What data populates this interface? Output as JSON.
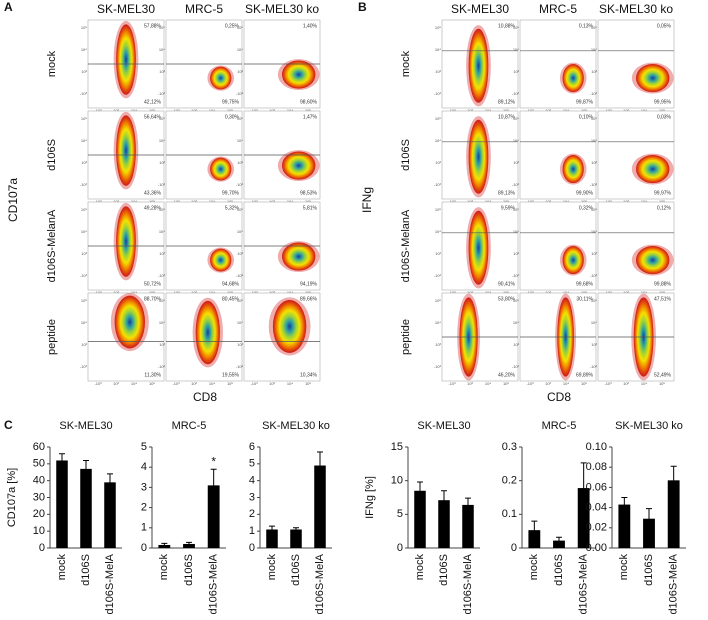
{
  "panels": [
    {
      "label": "A",
      "y_label": "CD107a",
      "x_label": "CD8",
      "columns": [
        "SK-MEL30",
        "MRC-5",
        "SK-MEL30 ko"
      ],
      "rows": [
        "mock",
        "d106S",
        "d106S-MelanA",
        "peptide"
      ],
      "cells": [
        [
          {
            "top": "57,88%",
            "bottom": "42,12%"
          },
          {
            "top": "0,25%",
            "bottom": "99,75%"
          },
          {
            "top": "1,40%",
            "bottom": "98,60%"
          }
        ],
        [
          {
            "top": "56,64%",
            "bottom": "43,36%"
          },
          {
            "top": "0,30%",
            "bottom": "99,70%"
          },
          {
            "top": "1,47%",
            "bottom": "98,53%"
          }
        ],
        [
          {
            "top": "49,28%",
            "bottom": "50,72%"
          },
          {
            "top": "5,32%",
            "bottom": "94,68%"
          },
          {
            "top": "5,81%",
            "bottom": "94,19%"
          }
        ],
        [
          {
            "top": "88,70%",
            "bottom": "11,30%"
          },
          {
            "top": "80,45%",
            "bottom": "19,55%"
          },
          {
            "top": "89,66%",
            "bottom": "10,34%"
          }
        ]
      ]
    },
    {
      "label": "B",
      "y_label": "IFNg",
      "x_label": "CD8",
      "columns": [
        "SK-MEL30",
        "MRC-5",
        "SK-MEL30 ko"
      ],
      "rows": [
        "mock",
        "d106S",
        "d106S-MelanA",
        "peptide"
      ],
      "cells": [
        [
          {
            "top": "10,88%",
            "bottom": "89,12%"
          },
          {
            "top": "0,13%",
            "bottom": "99,87%"
          },
          {
            "top": "0,05%",
            "bottom": "99,95%"
          }
        ],
        [
          {
            "top": "10,87%",
            "bottom": "89,13%"
          },
          {
            "top": "0,10%",
            "bottom": "99,90%"
          },
          {
            "top": "0,03%",
            "bottom": "99,97%"
          }
        ],
        [
          {
            "top": "9,59%",
            "bottom": "90,41%"
          },
          {
            "top": "0,32%",
            "bottom": "99,68%"
          },
          {
            "top": "0,12%",
            "bottom": "99,88%"
          }
        ],
        [
          {
            "top": "53,80%",
            "bottom": "46,20%"
          },
          {
            "top": "30,11%",
            "bottom": "69,89%"
          },
          {
            "top": "47,51%",
            "bottom": "52,49%"
          }
        ]
      ]
    }
  ],
  "flow_axis_ticks": {
    "y": [
      "10⁵",
      "10⁴",
      "10³",
      "-10³"
    ],
    "x": [
      "-10³",
      "10³",
      "10⁴",
      "10⁵"
    ]
  },
  "panel_c_label": "C",
  "chart_data": [
    {
      "type": "bar",
      "title": "SK-MEL30",
      "y_label": "CD107a [%]",
      "categories": [
        "mock",
        "d106S",
        "d106S-MelA"
      ],
      "values": [
        52,
        47,
        39
      ],
      "errors": [
        4,
        5,
        5
      ],
      "color": "#000000",
      "ylim": [
        0,
        60
      ],
      "yticks": [
        0,
        10,
        20,
        30,
        40,
        50,
        60
      ]
    },
    {
      "type": "bar",
      "title": "MRC-5",
      "categories": [
        "mock",
        "d106S",
        "d106S-MelA"
      ],
      "values": [
        0.15,
        0.2,
        3.1
      ],
      "errors": [
        0.08,
        0.08,
        0.8
      ],
      "color": "#000000",
      "ylim": [
        0,
        5
      ],
      "yticks": [
        0,
        1,
        2,
        3,
        4,
        5
      ],
      "annotation": "*"
    },
    {
      "type": "bar",
      "title": "SK-MEL30 ko",
      "categories": [
        "mock",
        "d106S",
        "d106S-MelA"
      ],
      "values": [
        1.1,
        1.1,
        4.9
      ],
      "errors": [
        0.2,
        0.1,
        0.8
      ],
      "color": "#000000",
      "ylim": [
        0,
        6
      ],
      "yticks": [
        0,
        1,
        2,
        3,
        4,
        5,
        6
      ]
    },
    {
      "type": "bar",
      "title": "SK-MEL30",
      "y_label": "IFNg [%]",
      "categories": [
        "mock",
        "d106S",
        "d106S-MelA"
      ],
      "values": [
        8.5,
        7.1,
        6.4
      ],
      "errors": [
        1.3,
        1.4,
        1.0
      ],
      "color": "#000000",
      "ylim": [
        0,
        15
      ],
      "yticks": [
        0,
        5,
        10,
        15
      ]
    },
    {
      "type": "bar",
      "title": "MRC-5",
      "categories": [
        "mock",
        "d106S",
        "d106S-MelA"
      ],
      "values": [
        0.053,
        0.022,
        0.178
      ],
      "errors": [
        0.027,
        0.01,
        0.075
      ],
      "color": "#000000",
      "ylim": [
        0,
        0.3
      ],
      "yticks": [
        0,
        0.1,
        0.2,
        0.3
      ]
    },
    {
      "type": "bar",
      "title": "SK-MEL30 ko",
      "categories": [
        "mock",
        "d106S",
        "d106S-MelA"
      ],
      "values": [
        0.043,
        0.029,
        0.067
      ],
      "errors": [
        0.007,
        0.01,
        0.014
      ],
      "color": "#000000",
      "ylim": [
        0,
        0.1
      ],
      "yticks": [
        {
          "value": 0,
          "label": "0.00"
        },
        {
          "value": 0.02,
          "label": "0.02"
        },
        {
          "value": 0.04,
          "label": "0.04"
        },
        {
          "value": 0.06,
          "label": "0.06"
        },
        {
          "value": 0.08,
          "label": "0.08"
        },
        {
          "value": 0.1,
          "label": "0.10"
        }
      ]
    }
  ]
}
